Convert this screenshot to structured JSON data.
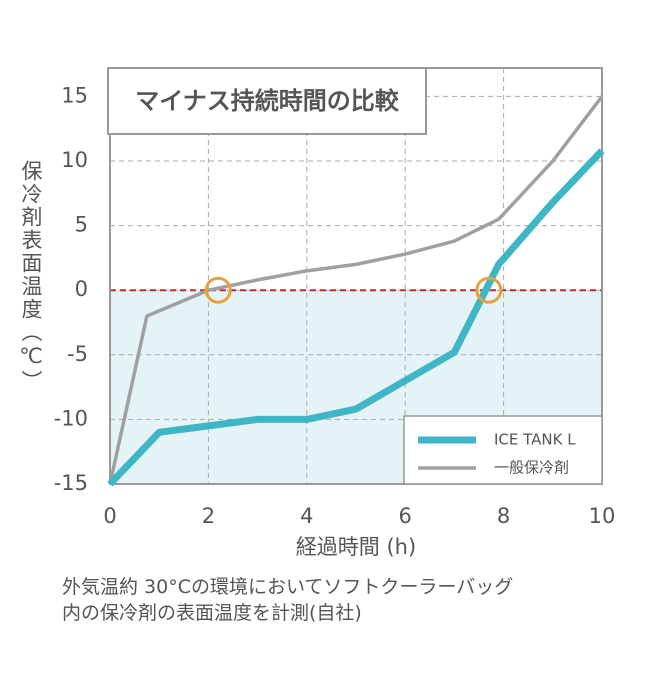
{
  "chart_data": {
    "type": "line",
    "title": "マイナス持続時間の比較",
    "x_label": "経過時間 (h)",
    "y_label": "保冷剤表面温度（℃）",
    "series": [
      {
        "name": "ICE TANK L",
        "color": "#3fb6c6",
        "x": [
          0,
          1,
          2,
          3,
          4,
          5,
          6,
          7,
          7.9,
          9,
          10
        ],
        "values": [
          -15,
          -11,
          -10.5,
          -10,
          -10,
          -9.2,
          -7,
          -4.8,
          2,
          6.8,
          10.8
        ]
      },
      {
        "name": "一般保冷剤",
        "color": "#a0a0a0",
        "x": [
          0,
          0.75,
          2,
          3,
          4,
          5,
          6,
          7,
          7.9,
          9,
          10
        ],
        "values": [
          -15,
          -2,
          0,
          0.8,
          1.5,
          2,
          2.8,
          3.8,
          5.5,
          10,
          15
        ]
      }
    ],
    "threshold": 0,
    "threshold_color": "#c8282d",
    "below_fill": "#e3f3f6",
    "highlights": [
      {
        "x": 2.2,
        "y": 0
      },
      {
        "x": 7.7,
        "y": 0
      }
    ],
    "highlight_color": "#e8a23a",
    "xlim": [
      0,
      10
    ],
    "xticks": [
      0,
      2,
      4,
      6,
      8,
      10
    ],
    "ylim": [
      -15,
      17.2
    ],
    "yticks": [
      -15,
      -10,
      -5,
      0,
      5,
      10,
      15
    ],
    "grid": true,
    "legend": "lower right",
    "caption": [
      "外気温約 30°Cの環境においてソフトクーラーバッグ",
      "内の保冷剤の表面温度を計測(自社)"
    ]
  }
}
